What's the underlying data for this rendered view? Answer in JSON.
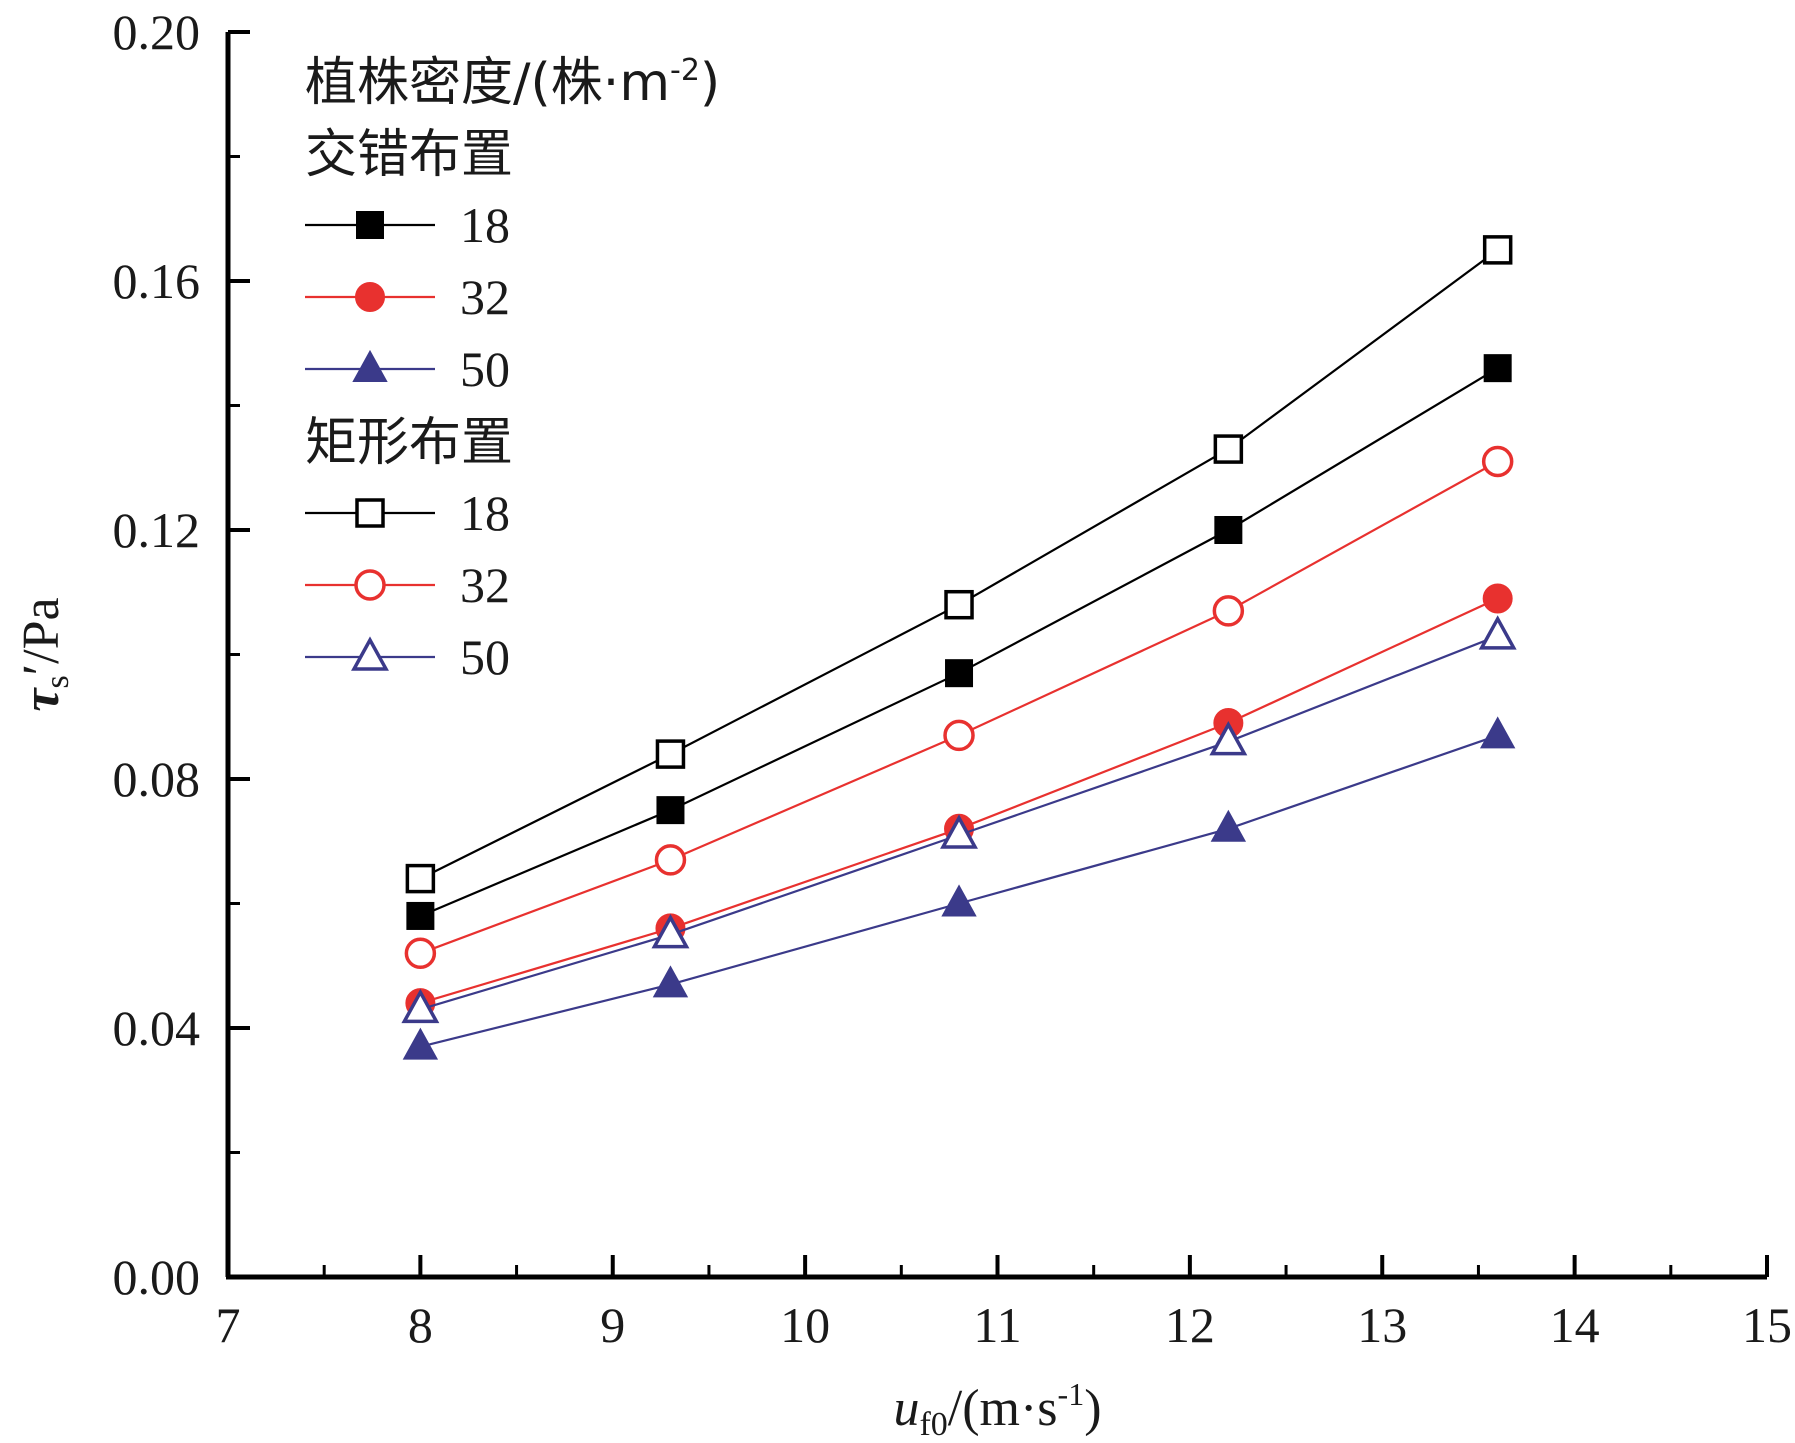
{
  "chart_data": {
    "type": "line",
    "title": "",
    "xlabel": {
      "main": "u",
      "sub": "f0",
      "unit_prefix": "/(m·s",
      "sup": "-1",
      "unit_suffix": ")"
    },
    "ylabel": {
      "main": "τ",
      "sub": "s",
      "prime": "′",
      "unit": "/Pa"
    },
    "xlim": [
      7,
      15
    ],
    "ylim": [
      0,
      0.2
    ],
    "x_ticks": [
      "7",
      "8",
      "9",
      "10",
      "11",
      "12",
      "13",
      "14",
      "15"
    ],
    "y_ticks": [
      "0.00",
      "0.04",
      "0.08",
      "0.12",
      "0.16",
      "0.20"
    ],
    "grid": false,
    "legend_position": "top-left",
    "legend_title": {
      "main": "植株密度/(株·m",
      "sup": "-2",
      "end": ")"
    },
    "legend_groups": [
      {
        "heading": "交错布置",
        "series_indices": [
          0,
          1,
          2
        ]
      },
      {
        "heading": "矩形布置",
        "series_indices": [
          3,
          4,
          5
        ]
      }
    ],
    "x": [
      8,
      9.3,
      10.8,
      12.2,
      13.6
    ],
    "series": [
      {
        "name": "18",
        "marker": "square",
        "filled": true,
        "color": "#000000",
        "values": [
          0.058,
          0.075,
          0.097,
          0.12,
          0.146
        ]
      },
      {
        "name": "32",
        "marker": "circle",
        "filled": true,
        "color": "#e8312f",
        "values": [
          0.044,
          0.056,
          0.072,
          0.089,
          0.109
        ]
      },
      {
        "name": "50",
        "marker": "triangle",
        "filled": true,
        "color": "#3b3a8a",
        "values": [
          0.037,
          0.047,
          0.06,
          0.072,
          0.087
        ]
      },
      {
        "name": "18",
        "marker": "square",
        "filled": false,
        "color": "#000000",
        "values": [
          0.064,
          0.084,
          0.108,
          0.133,
          0.165
        ]
      },
      {
        "name": "32",
        "marker": "circle",
        "filled": false,
        "color": "#e8312f",
        "values": [
          0.052,
          0.067,
          0.087,
          0.107,
          0.131
        ]
      },
      {
        "name": "50",
        "marker": "triangle",
        "filled": false,
        "color": "#3b3a8a",
        "values": [
          0.043,
          0.055,
          0.071,
          0.086,
          0.103
        ]
      }
    ]
  }
}
